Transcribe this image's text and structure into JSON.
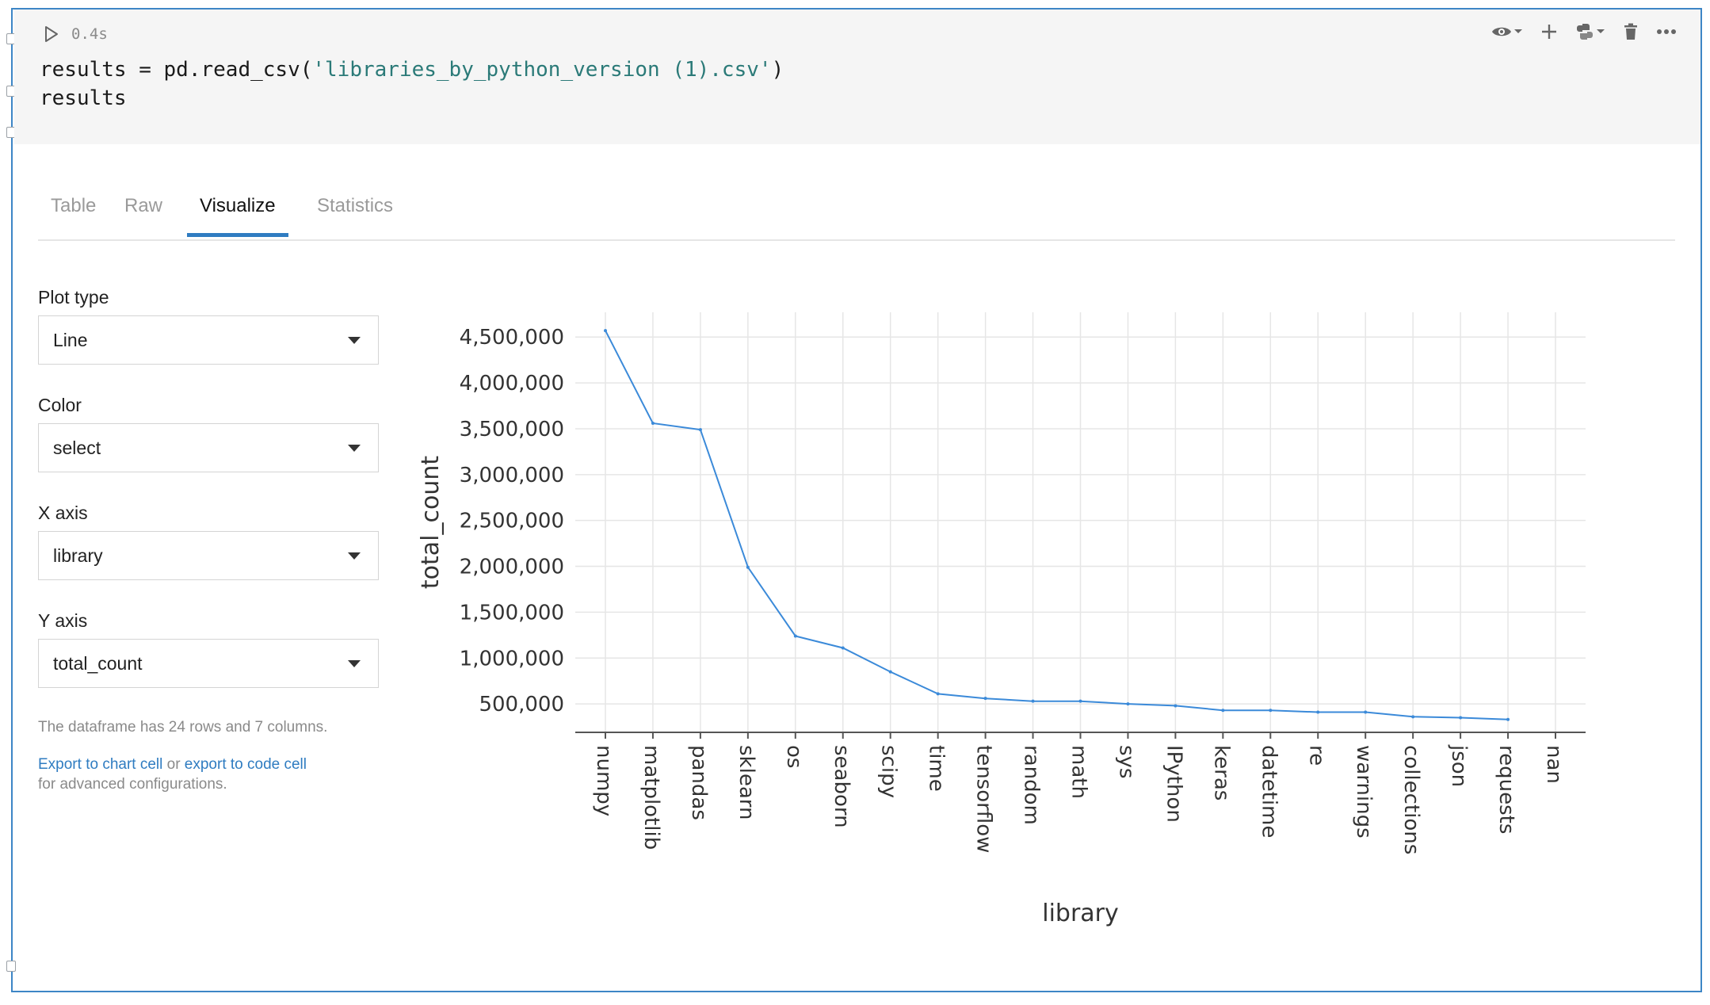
{
  "cell": {
    "exec_time": "0.4s",
    "code_line1_prefix": "results = pd.read_csv(",
    "code_line1_string": "'libraries_by_python_version (1).csv'",
    "code_line1_suffix": ")",
    "code_line2": "results"
  },
  "toolbar": {
    "icons": [
      "eye-icon",
      "plus-icon",
      "python-icon",
      "trash-icon",
      "more-icon"
    ]
  },
  "tabs": [
    {
      "label": "Table",
      "active": false
    },
    {
      "label": "Raw",
      "active": false
    },
    {
      "label": "Visualize",
      "active": true
    },
    {
      "label": "Statistics",
      "active": false
    }
  ],
  "controls": {
    "plot_type": {
      "label": "Plot type",
      "value": "Line"
    },
    "color": {
      "label": "Color",
      "value": "select"
    },
    "x_axis": {
      "label": "X axis",
      "value": "library"
    },
    "y_axis": {
      "label": "Y axis",
      "value": "total_count"
    }
  },
  "info_text": "The dataframe has 24 rows and 7 columns.",
  "export": {
    "chart_link": "Export to chart cell",
    "or_text": " or ",
    "code_link": "export to code cell",
    "tail": "for advanced configurations."
  },
  "chart_data": {
    "type": "line",
    "xlabel": "library",
    "ylabel": "total_count",
    "ylim": [
      190000,
      4770000
    ],
    "yticks": [
      500000,
      1000000,
      1500000,
      2000000,
      2500000,
      3000000,
      3500000,
      4000000,
      4500000
    ],
    "ytick_labels": [
      "500,000",
      "1,000,000",
      "1,500,000",
      "2,000,000",
      "2,500,000",
      "3,000,000",
      "3,500,000",
      "4,000,000",
      "4,500,000"
    ],
    "grid": true,
    "line_color": "#3b8ad9",
    "categories": [
      "numpy",
      "matplotlib",
      "pandas",
      "sklearn",
      "os",
      "seaborn",
      "scipy",
      "time",
      "tensorflow",
      "random",
      "math",
      "sys",
      "IPython",
      "keras",
      "datetime",
      "re",
      "warnings",
      "collections",
      "json",
      "requests",
      "nan"
    ],
    "values": [
      4570000,
      3560000,
      3490000,
      1990000,
      1240000,
      1110000,
      850000,
      610000,
      560000,
      530000,
      530000,
      500000,
      480000,
      430000,
      430000,
      410000,
      410000,
      360000,
      350000,
      330000,
      null
    ]
  }
}
